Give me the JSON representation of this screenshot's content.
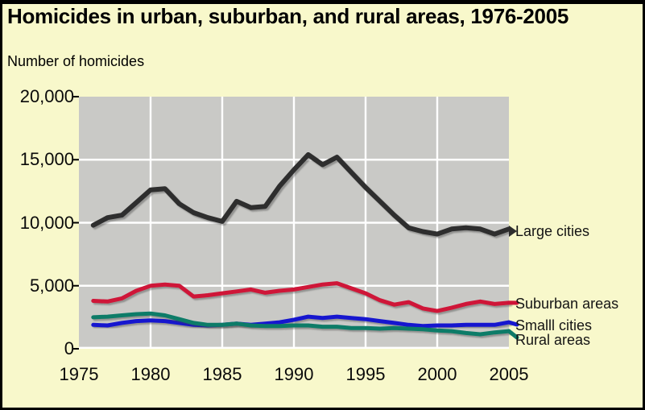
{
  "page": {
    "background_color": "#f8f8cb",
    "border_color": "#000000"
  },
  "chart_data": {
    "type": "line",
    "title": "Homicides in urban, suburban, and rural areas, 1976-2005",
    "ylabel": "Number of homicides",
    "xlabel": "",
    "xlim": [
      1975,
      2005
    ],
    "ylim": [
      0,
      20000
    ],
    "grid": true,
    "plot_bg_color": "#c9c9c6",
    "grid_color": "#ffffff",
    "x_ticks": [
      1975,
      1980,
      1985,
      1990,
      1995,
      2000,
      2005
    ],
    "y_ticks": [
      0,
      5000,
      10000,
      15000,
      20000
    ],
    "y_tick_labels": [
      "0",
      "5,000",
      "10,000",
      "15,000",
      "20,000"
    ],
    "legend_position": "right-of-line-ends",
    "x": [
      1976,
      1977,
      1978,
      1979,
      1980,
      1981,
      1982,
      1983,
      1984,
      1985,
      1986,
      1987,
      1988,
      1989,
      1990,
      1991,
      1992,
      1993,
      1994,
      1995,
      1996,
      1997,
      1998,
      1999,
      2000,
      2001,
      2002,
      2003,
      2004,
      2005
    ],
    "series": [
      {
        "name": "Large cities",
        "color": "#2e2e2e",
        "values": [
          9800,
          10400,
          10600,
          11600,
          12600,
          12700,
          11500,
          10800,
          10400,
          10100,
          11700,
          11200,
          11300,
          12900,
          14200,
          15400,
          14600,
          15200,
          14000,
          12800,
          11700,
          10600,
          9600,
          9300,
          9100,
          9500,
          9600,
          9500,
          9100,
          9500
        ]
      },
      {
        "name": "Suburban areas",
        "color": "#cf1238",
        "values": [
          3800,
          3750,
          4000,
          4600,
          5000,
          5100,
          5000,
          4150,
          4250,
          4400,
          4550,
          4700,
          4450,
          4600,
          4700,
          4900,
          5100,
          5200,
          4800,
          4400,
          3850,
          3500,
          3700,
          3200,
          3000,
          3250,
          3550,
          3750,
          3550,
          3650
        ]
      },
      {
        "name": "Smalll cities",
        "color": "#1717cf",
        "values": [
          1900,
          1850,
          2050,
          2200,
          2250,
          2200,
          2050,
          1900,
          1850,
          1900,
          2000,
          1900,
          2000,
          2100,
          2300,
          2550,
          2450,
          2550,
          2450,
          2350,
          2200,
          2050,
          1900,
          1800,
          1850,
          1850,
          1900,
          1900,
          1900,
          2100
        ]
      },
      {
        "name": "Rural areas",
        "color": "#0f7b68",
        "values": [
          2500,
          2550,
          2650,
          2750,
          2800,
          2650,
          2350,
          2050,
          1900,
          1900,
          2000,
          1850,
          1800,
          1800,
          1850,
          1850,
          1750,
          1750,
          1650,
          1650,
          1600,
          1650,
          1600,
          1550,
          1450,
          1400,
          1250,
          1150,
          1300,
          1400
        ]
      }
    ]
  }
}
